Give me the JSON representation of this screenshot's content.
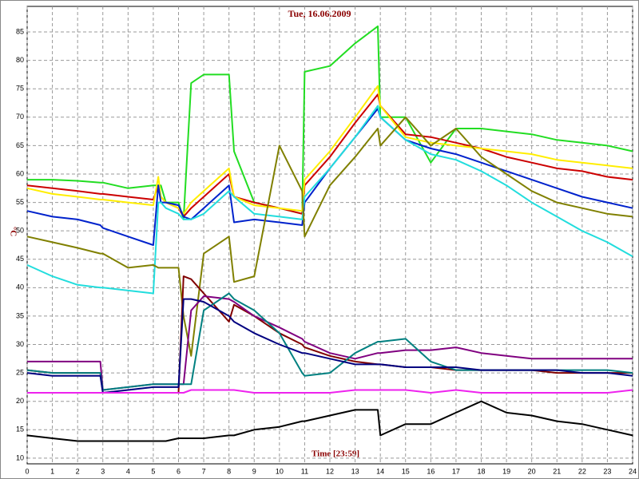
{
  "chart_data": {
    "type": "line",
    "title": "Tue, 16.06.2009",
    "x_label": "Time [23:59]",
    "y_label": "°C",
    "x": [
      0,
      1,
      2,
      2.9,
      3,
      4,
      5,
      5.2,
      5.3,
      5.5,
      6,
      6.2,
      6.5,
      7,
      8,
      8.2,
      9,
      10,
      10.9,
      11,
      12,
      13,
      13.9,
      14,
      15,
      16,
      17,
      18,
      19,
      20,
      21,
      22,
      23,
      24
    ],
    "xlim": [
      0,
      24
    ],
    "xticks": [
      0,
      1,
      2,
      3,
      4,
      5,
      6,
      7,
      8,
      9,
      10,
      11,
      12,
      13,
      14,
      15,
      16,
      17,
      18,
      19,
      20,
      21,
      22,
      23,
      24
    ],
    "ylim": [
      9,
      89.5
    ],
    "yticks": [
      10,
      15,
      20,
      25,
      30,
      35,
      40,
      45,
      50,
      55,
      60,
      65,
      70,
      75,
      80,
      85
    ],
    "grid": true,
    "series": [
      {
        "color": "#22dd22",
        "values": [
          59,
          59,
          58.8,
          58.5,
          58.5,
          57.5,
          58,
          58,
          58,
          55,
          55,
          52,
          76,
          77.5,
          77.5,
          64,
          55,
          54,
          53,
          78,
          79,
          83,
          86,
          70,
          70,
          62,
          68,
          68,
          67.5,
          67,
          66,
          65.5,
          65,
          64
        ]
      },
      {
        "color": "#cc0000",
        "values": [
          58,
          57.5,
          57,
          56.5,
          56.5,
          56,
          55.5,
          58,
          56,
          55,
          54,
          52.5,
          54,
          56,
          60,
          56,
          55,
          54,
          53,
          58,
          63,
          69,
          74,
          72,
          67,
          66.5,
          65.5,
          64.5,
          63,
          62,
          61,
          60.5,
          59.5,
          59
        ]
      },
      {
        "color": "#ffee00",
        "values": [
          57.5,
          56.5,
          56,
          55.5,
          55.5,
          55,
          54.5,
          59.5,
          56,
          55,
          54,
          53,
          55,
          57,
          61,
          56,
          54.5,
          54,
          53.5,
          59,
          64,
          70,
          75.5,
          72,
          66.5,
          65.5,
          65,
          64.5,
          64,
          63.5,
          62.5,
          62,
          61.5,
          61
        ]
      },
      {
        "color": "#0022cc",
        "values": [
          53.5,
          52.5,
          52,
          51,
          50.5,
          49,
          47.5,
          58,
          55,
          55,
          54.5,
          52.5,
          52,
          54,
          58,
          51.5,
          52,
          51.5,
          51,
          55,
          61,
          66.5,
          71.5,
          70,
          66,
          64.5,
          63.5,
          62,
          60.5,
          59,
          57.5,
          56,
          55,
          54
        ]
      },
      {
        "color": "#22dddd",
        "values": [
          44,
          42,
          40.5,
          40,
          40,
          39.5,
          39,
          55,
          55,
          54,
          53,
          52,
          52,
          53,
          57,
          56,
          53,
          52.5,
          52,
          56,
          61,
          66.5,
          72,
          70,
          66,
          63.5,
          62.5,
          60.5,
          58,
          55,
          52.5,
          50,
          48,
          45.5
        ]
      },
      {
        "color": "#808000",
        "values": [
          49,
          48,
          47,
          46,
          46,
          43.5,
          44,
          43.5,
          43.5,
          43.5,
          43.5,
          35,
          28,
          46,
          49,
          41,
          42,
          65,
          57,
          49,
          58,
          63,
          68,
          65,
          70,
          65,
          68,
          63,
          60,
          57,
          55,
          54,
          53,
          52.5
        ]
      },
      {
        "color": "#800000",
        "values": [
          25.5,
          25,
          25,
          25,
          21.5,
          21.5,
          21.5,
          21.5,
          21.5,
          21.5,
          21.5,
          42,
          41.5,
          39,
          34,
          37,
          35,
          32,
          30,
          29.5,
          28,
          27,
          26.5,
          26.5,
          26,
          26,
          25.5,
          25.5,
          25.5,
          25.5,
          25,
          25,
          25,
          25
        ]
      },
      {
        "color": "#800080",
        "values": [
          27,
          27,
          27,
          27,
          22,
          22.5,
          23,
          23,
          23,
          23,
          23,
          23,
          36,
          38.5,
          38,
          37.5,
          35,
          33,
          31,
          30.5,
          28.5,
          27.5,
          28.5,
          28.5,
          29,
          29,
          29.5,
          28.5,
          28,
          27.5,
          27.5,
          27.5,
          27.5,
          27.5
        ]
      },
      {
        "color": "#008080",
        "values": [
          25.5,
          25,
          25,
          25,
          22,
          22.5,
          23,
          23,
          23,
          23,
          23,
          23,
          23,
          36,
          39,
          38,
          36,
          32,
          25,
          24.5,
          25,
          28.5,
          30.5,
          30.5,
          31,
          27,
          25.5,
          25.5,
          25.5,
          25.5,
          25.5,
          25.5,
          25.5,
          25
        ]
      },
      {
        "color": "#000080",
        "values": [
          25,
          24.5,
          24.5,
          24.5,
          21.5,
          22,
          22.5,
          22.5,
          22.5,
          22.5,
          22.5,
          38,
          38,
          37.5,
          35,
          34,
          32,
          30,
          28.5,
          28.5,
          27.5,
          26.5,
          26.5,
          26.5,
          26,
          26,
          26,
          25.5,
          25.5,
          25.5,
          25.5,
          25,
          25,
          24.5
        ]
      },
      {
        "color": "#ee22ee",
        "values": [
          21.5,
          21.5,
          21.5,
          21.5,
          21.5,
          21.5,
          21.5,
          21.5,
          21.5,
          21.5,
          21.5,
          21.5,
          22,
          22,
          22,
          22,
          21.5,
          21.5,
          21.5,
          21.5,
          21.5,
          22,
          22,
          22,
          22,
          21.5,
          22,
          21.5,
          21.5,
          21.5,
          21.5,
          21.5,
          21.5,
          22
        ]
      },
      {
        "color": "#000000",
        "values": [
          14,
          13.5,
          13,
          13,
          13,
          13,
          13,
          13,
          13,
          13,
          13.5,
          13.5,
          13.5,
          13.5,
          14,
          14,
          15,
          15.5,
          16.5,
          16.5,
          17.5,
          18.5,
          18.5,
          14,
          16,
          16,
          18,
          20,
          18,
          17.5,
          16.5,
          16,
          15,
          14
        ]
      }
    ]
  }
}
